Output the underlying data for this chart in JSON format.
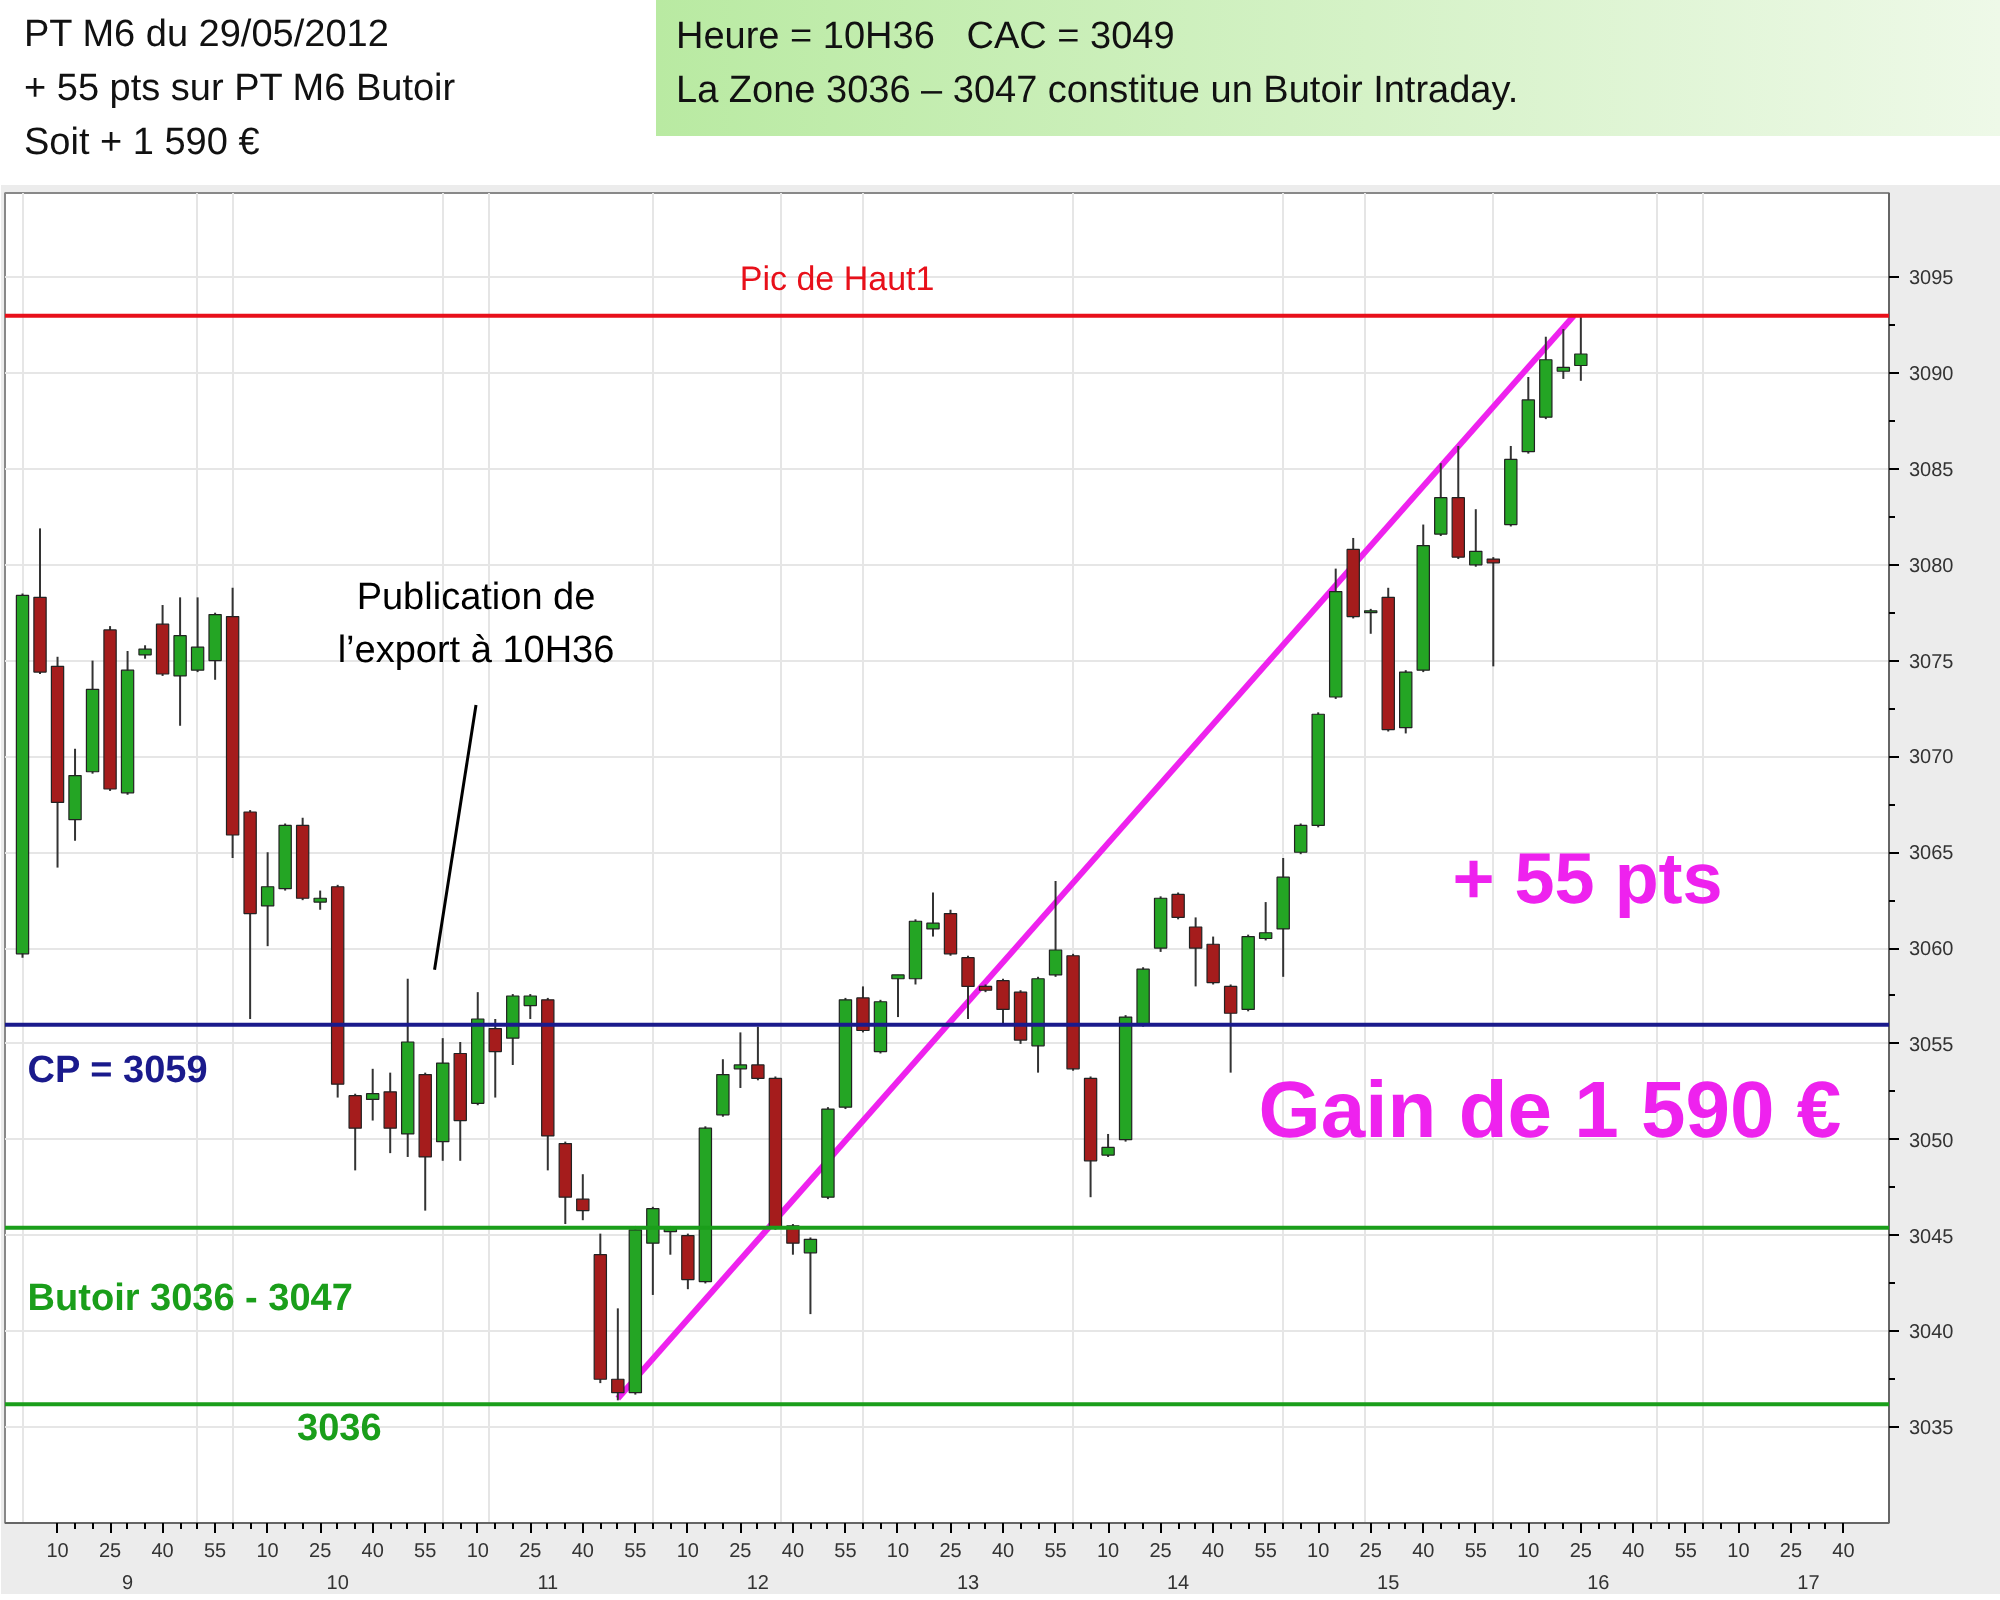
{
  "chart_data": {
    "type": "candlestick",
    "title": "PT M6 du 29/05/2012",
    "subtitle": "+ 55 pts sur PT M6 Butoir\nSoit + 1 590 €",
    "x": [
      "2012-05-29T09:00",
      "2012-05-29T09:05",
      "2012-05-29T09:10",
      "2012-05-29T09:15",
      "2012-05-29T09:20",
      "2012-05-29T09:25",
      "2012-05-29T09:30",
      "2012-05-29T09:35",
      "2012-05-29T09:40",
      "2012-05-29T09:45",
      "2012-05-29T09:50",
      "2012-05-29T09:55",
      "2012-05-29T10:00",
      "2012-05-29T10:05",
      "2012-05-29T10:10",
      "2012-05-29T10:15",
      "2012-05-29T10:20",
      "2012-05-29T10:25",
      "2012-05-29T10:30",
      "2012-05-29T10:35",
      "2012-05-29T10:40",
      "2012-05-29T10:45",
      "2012-05-29T10:50",
      "2012-05-29T10:55",
      "2012-05-29T11:00",
      "2012-05-29T11:05",
      "2012-05-29T11:10",
      "2012-05-29T11:15",
      "2012-05-29T11:20",
      "2012-05-29T11:25",
      "2012-05-29T11:30",
      "2012-05-29T11:35",
      "2012-05-29T11:40",
      "2012-05-29T11:45",
      "2012-05-29T11:50",
      "2012-05-29T11:55",
      "2012-05-29T12:00",
      "2012-05-29T12:05",
      "2012-05-29T12:10",
      "2012-05-29T12:15",
      "2012-05-29T12:20",
      "2012-05-29T12:25",
      "2012-05-29T12:30",
      "2012-05-29T12:35",
      "2012-05-29T12:40",
      "2012-05-29T12:45",
      "2012-05-29T12:50",
      "2012-05-29T12:55",
      "2012-05-29T13:00",
      "2012-05-29T13:05",
      "2012-05-29T13:10",
      "2012-05-29T13:15",
      "2012-05-29T13:20",
      "2012-05-29T13:25",
      "2012-05-29T13:30",
      "2012-05-29T13:35",
      "2012-05-29T13:40",
      "2012-05-29T13:45",
      "2012-05-29T13:50",
      "2012-05-29T13:55",
      "2012-05-29T14:00",
      "2012-05-29T14:05",
      "2012-05-29T14:10",
      "2012-05-29T14:15",
      "2012-05-29T14:20",
      "2012-05-29T14:25",
      "2012-05-29T14:30",
      "2012-05-29T14:35",
      "2012-05-29T14:40",
      "2012-05-29T14:45",
      "2012-05-29T14:50",
      "2012-05-29T14:55",
      "2012-05-29T15:00",
      "2012-05-29T15:05",
      "2012-05-29T15:10",
      "2012-05-29T15:15",
      "2012-05-29T15:20",
      "2012-05-29T15:25",
      "2012-05-29T15:30",
      "2012-05-29T15:35",
      "2012-05-29T15:40",
      "2012-05-29T15:45",
      "2012-05-29T15:50",
      "2012-05-29T15:55",
      "2012-05-29T16:00",
      "2012-05-29T16:05",
      "2012-05-29T16:10",
      "2012-05-29T16:15",
      "2012-05-29T16:20",
      "2012-05-29T16:25"
    ],
    "ohlc": [
      [
        3059.7,
        3078.5,
        3059.5,
        3078.4
      ],
      [
        3078.3,
        3081.9,
        3074.3,
        3074.4
      ],
      [
        3074.7,
        3075.2,
        3064.2,
        3067.6
      ],
      [
        3066.7,
        3070.4,
        3065.6,
        3069.0
      ],
      [
        3069.2,
        3075.0,
        3069.1,
        3073.5
      ],
      [
        3076.6,
        3076.8,
        3068.2,
        3068.3
      ],
      [
        3068.1,
        3075.5,
        3068.0,
        3074.5
      ],
      [
        3075.3,
        3075.8,
        3075.1,
        3075.6
      ],
      [
        3076.9,
        3077.9,
        3074.2,
        3074.3
      ],
      [
        3074.2,
        3078.3,
        3071.6,
        3076.3
      ],
      [
        3074.5,
        3078.3,
        3074.4,
        3075.7
      ],
      [
        3075.0,
        3077.5,
        3074.0,
        3077.4
      ],
      [
        3077.3,
        3078.8,
        3064.7,
        3065.9
      ],
      [
        3067.1,
        3067.2,
        3056.3,
        3061.8
      ],
      [
        3062.2,
        3065.0,
        3060.1,
        3063.2
      ],
      [
        3063.1,
        3066.5,
        3063.0,
        3066.4
      ],
      [
        3066.4,
        3066.8,
        3062.5,
        3062.6
      ],
      [
        3062.4,
        3063.0,
        3062.0,
        3062.6
      ],
      [
        3063.2,
        3063.3,
        3052.2,
        3052.9
      ],
      [
        3052.3,
        3052.4,
        3048.4,
        3050.6
      ],
      [
        3052.1,
        3053.7,
        3051.0,
        3052.4
      ],
      [
        3052.5,
        3053.5,
        3049.3,
        3050.6
      ],
      [
        3050.3,
        3058.4,
        3049.1,
        3055.1
      ],
      [
        3053.4,
        3053.5,
        3046.3,
        3049.1
      ],
      [
        3049.9,
        3055.3,
        3048.9,
        3054.0
      ],
      [
        3054.5,
        3055.1,
        3048.9,
        3051.0
      ],
      [
        3051.9,
        3057.7,
        3051.8,
        3056.3
      ],
      [
        3055.8,
        3056.3,
        3052.2,
        3054.6
      ],
      [
        3055.3,
        3057.6,
        3053.9,
        3057.5
      ],
      [
        3057.0,
        3057.6,
        3056.3,
        3057.5
      ],
      [
        3057.3,
        3057.4,
        3048.4,
        3050.2
      ],
      [
        3049.8,
        3049.9,
        3045.6,
        3047.0
      ],
      [
        3046.9,
        3048.2,
        3045.8,
        3046.3
      ],
      [
        3044.0,
        3045.1,
        3037.3,
        3037.5
      ],
      [
        3037.5,
        3041.2,
        3036.4,
        3036.8
      ],
      [
        3036.8,
        3045.5,
        3036.7,
        3045.3
      ],
      [
        3044.6,
        3046.5,
        3041.9,
        3046.4
      ],
      [
        3045.2,
        3045.5,
        3044.0,
        3045.4
      ],
      [
        3045.0,
        3045.1,
        3042.2,
        3042.7
      ],
      [
        3042.6,
        3050.7,
        3042.5,
        3050.6
      ],
      [
        3051.3,
        3054.2,
        3051.2,
        3053.4
      ],
      [
        3053.7,
        3055.6,
        3052.7,
        3053.9
      ],
      [
        3053.9,
        3055.9,
        3053.1,
        3053.2
      ],
      [
        3053.2,
        3053.3,
        3045.3,
        3045.4
      ],
      [
        3045.5,
        3045.6,
        3044.0,
        3044.6
      ],
      [
        3044.1,
        3044.9,
        3040.9,
        3044.8
      ],
      [
        3047.0,
        3051.7,
        3046.9,
        3051.6
      ],
      [
        3051.7,
        3057.4,
        3051.6,
        3057.3
      ],
      [
        3057.4,
        3058.0,
        3055.6,
        3055.7
      ],
      [
        3054.6,
        3057.3,
        3054.5,
        3057.2
      ],
      [
        3058.4,
        3058.6,
        3056.4,
        3058.6
      ],
      [
        3058.4,
        3061.5,
        3058.1,
        3061.4
      ],
      [
        3061.0,
        3062.9,
        3060.6,
        3061.3
      ],
      [
        3061.8,
        3062.0,
        3059.6,
        3059.7
      ],
      [
        3059.5,
        3059.6,
        3056.3,
        3058.0
      ],
      [
        3058.0,
        3058.1,
        3057.7,
        3057.8
      ],
      [
        3058.3,
        3058.4,
        3056.0,
        3056.8
      ],
      [
        3057.7,
        3057.8,
        3055.0,
        3055.2
      ],
      [
        3054.9,
        3058.5,
        3053.5,
        3058.4
      ],
      [
        3058.6,
        3063.5,
        3058.5,
        3059.9
      ],
      [
        3059.6,
        3059.7,
        3053.6,
        3053.7
      ],
      [
        3053.2,
        3053.3,
        3047.0,
        3048.9
      ],
      [
        3049.2,
        3050.3,
        3049.1,
        3049.6
      ],
      [
        3050.0,
        3056.5,
        3049.9,
        3056.4
      ],
      [
        3056.0,
        3059.0,
        3055.9,
        3058.9
      ],
      [
        3060.0,
        3062.7,
        3059.8,
        3062.6
      ],
      [
        3062.8,
        3062.9,
        3061.5,
        3061.6
      ],
      [
        3061.1,
        3061.6,
        3058.0,
        3060.0
      ],
      [
        3060.2,
        3060.6,
        3058.1,
        3058.2
      ],
      [
        3058.0,
        3058.1,
        3053.5,
        3056.6
      ],
      [
        3056.8,
        3060.7,
        3056.7,
        3060.6
      ],
      [
        3060.5,
        3062.4,
        3060.4,
        3060.8
      ],
      [
        3061.0,
        3064.7,
        3058.5,
        3063.7
      ],
      [
        3065.0,
        3066.5,
        3064.9,
        3066.4
      ],
      [
        3066.4,
        3072.3,
        3066.3,
        3072.2
      ],
      [
        3073.1,
        3079.8,
        3073.0,
        3078.6
      ],
      [
        3080.8,
        3081.4,
        3077.2,
        3077.3
      ],
      [
        3077.5,
        3077.7,
        3076.4,
        3077.6
      ],
      [
        3078.3,
        3078.8,
        3071.3,
        3071.4
      ],
      [
        3071.5,
        3074.5,
        3071.2,
        3074.4
      ],
      [
        3074.5,
        3082.1,
        3074.4,
        3081.0
      ],
      [
        3081.6,
        3085.3,
        3081.5,
        3083.5
      ],
      [
        3083.5,
        3086.2,
        3080.3,
        3080.4
      ],
      [
        3080.0,
        3082.9,
        3079.9,
        3080.7
      ],
      [
        3080.3,
        3080.4,
        3074.7,
        3080.1
      ],
      [
        3082.1,
        3086.2,
        3082.0,
        3085.5
      ],
      [
        3085.9,
        3089.8,
        3085.8,
        3088.6
      ],
      [
        3087.7,
        3091.9,
        3087.6,
        3090.7
      ],
      [
        3090.1,
        3092.3,
        3089.7,
        3090.3
      ],
      [
        3090.4,
        3093.0,
        3089.6,
        3091.0
      ]
    ],
    "colors": [
      "#24a524",
      "#a51c1c",
      "#a51c1c",
      "#24a524",
      "#24a524",
      "#a51c1c",
      "#24a524",
      "#24a524",
      "#a51c1c",
      "#24a524",
      "#24a524",
      "#24a524",
      "#a51c1c",
      "#a51c1c",
      "#24a524",
      "#24a524",
      "#a51c1c",
      "#24a524",
      "#a51c1c",
      "#a51c1c",
      "#24a524",
      "#a51c1c",
      "#24a524",
      "#a51c1c",
      "#24a524",
      "#a51c1c",
      "#24a524",
      "#a51c1c",
      "#24a524",
      "#24a524",
      "#a51c1c",
      "#a51c1c",
      "#a51c1c",
      "#a51c1c",
      "#a51c1c",
      "#24a524",
      "#24a524",
      "#24a524",
      "#a51c1c",
      "#24a524",
      "#24a524",
      "#24a524",
      "#a51c1c",
      "#a51c1c",
      "#a51c1c",
      "#24a524",
      "#24a524",
      "#24a524",
      "#a51c1c",
      "#24a524",
      "#24a524",
      "#24a524",
      "#24a524",
      "#a51c1c",
      "#a51c1c",
      "#a51c1c",
      "#a51c1c",
      "#a51c1c",
      "#24a524",
      "#24a524",
      "#a51c1c",
      "#a51c1c",
      "#24a524",
      "#24a524",
      "#24a524",
      "#24a524",
      "#a51c1c",
      "#a51c1c",
      "#a51c1c",
      "#a51c1c",
      "#24a524",
      "#24a524",
      "#24a524",
      "#24a524",
      "#24a524",
      "#24a524",
      "#a51c1c",
      "#24a524",
      "#a51c1c",
      "#24a524",
      "#24a524",
      "#24a524",
      "#a51c1c",
      "#24a524",
      "#a51c1c",
      "#24a524",
      "#24a524",
      "#24a524",
      "#24a524",
      "#24a524"
    ],
    "series": [
      {
        "type": "line",
        "color": "#ee22ee",
        "x": [
          "2012-05-29T11:50",
          "2012-05-29T16:23"
        ],
        "values": [
          3036.5,
          3093.0
        ]
      }
    ],
    "xlim": [
      "2012-05-29T08:55",
      "2012-05-29T17:53"
    ],
    "ylim": [
      3030,
      3099.4
    ],
    "xticks": [
      {
        "value": "2012-05-29T09:10",
        "label": "10"
      },
      {
        "value": "2012-05-29T09:25",
        "label": "25"
      },
      {
        "value": "2012-05-29T09:40",
        "label": "40"
      },
      {
        "value": "2012-05-29T09:55",
        "label": "55"
      },
      {
        "value": "2012-05-29T10:10",
        "label": "10"
      },
      {
        "value": "2012-05-29T10:25",
        "label": "25"
      },
      {
        "value": "2012-05-29T10:40",
        "label": "40"
      },
      {
        "value": "2012-05-29T10:55",
        "label": "55"
      },
      {
        "value": "2012-05-29T11:10",
        "label": "10"
      },
      {
        "value": "2012-05-29T11:25",
        "label": "25"
      },
      {
        "value": "2012-05-29T11:40",
        "label": "40"
      },
      {
        "value": "2012-05-29T11:55",
        "label": "55"
      },
      {
        "value": "2012-05-29T12:10",
        "label": "10"
      },
      {
        "value": "2012-05-29T12:25",
        "label": "25"
      },
      {
        "value": "2012-05-29T12:40",
        "label": "40"
      },
      {
        "value": "2012-05-29T12:55",
        "label": "55"
      },
      {
        "value": "2012-05-29T13:10",
        "label": "10"
      },
      {
        "value": "2012-05-29T13:25",
        "label": "25"
      },
      {
        "value": "2012-05-29T13:40",
        "label": "40"
      },
      {
        "value": "2012-05-29T13:55",
        "label": "55"
      },
      {
        "value": "2012-05-29T14:10",
        "label": "10"
      },
      {
        "value": "2012-05-29T14:25",
        "label": "25"
      },
      {
        "value": "2012-05-29T14:40",
        "label": "40"
      },
      {
        "value": "2012-05-29T14:55",
        "label": "55"
      },
      {
        "value": "2012-05-29T15:10",
        "label": "10"
      },
      {
        "value": "2012-05-29T15:25",
        "label": "25"
      },
      {
        "value": "2012-05-29T15:40",
        "label": "40"
      },
      {
        "value": "2012-05-29T15:55",
        "label": "55"
      },
      {
        "value": "2012-05-29T16:10",
        "label": "10"
      },
      {
        "value": "2012-05-29T16:25",
        "label": "25"
      },
      {
        "value": "2012-05-29T16:40",
        "label": "40"
      },
      {
        "value": "2012-05-29T16:55",
        "label": "55"
      },
      {
        "value": "2012-05-29T17:10",
        "label": "10"
      },
      {
        "value": "2012-05-29T17:25",
        "label": "25"
      },
      {
        "value": "2012-05-29T17:40",
        "label": "40"
      }
    ],
    "x2lim": [
      "2012-05-29T08:55",
      "2012-05-29T17:53"
    ],
    "x2ticks": [
      {
        "value": "2012-05-29T09:30",
        "label": "9"
      },
      {
        "value": "2012-05-29T10:30",
        "label": "10"
      },
      {
        "value": "2012-05-29T11:30",
        "label": "11"
      },
      {
        "value": "2012-05-29T12:30",
        "label": "12"
      },
      {
        "value": "2012-05-29T13:30",
        "label": "13"
      },
      {
        "value": "2012-05-29T14:30",
        "label": "14"
      },
      {
        "value": "2012-05-29T15:30",
        "label": "15"
      },
      {
        "value": "2012-05-29T16:30",
        "label": "16"
      },
      {
        "value": "2012-05-29T17:30",
        "label": "17"
      }
    ],
    "yticks": [
      3035,
      3040,
      3045,
      3050,
      3055,
      3060,
      3065,
      3070,
      3075,
      3080,
      3085,
      3090,
      3095
    ],
    "grid": true,
    "ref_lines": [
      {
        "axis": "y",
        "value": 3093.0,
        "label": "Pic de Haut1",
        "color": "#e8101a"
      },
      {
        "axis": "y",
        "value": 3056.0,
        "color": "#1a1a8c"
      },
      {
        "axis": "y",
        "value": 3045.4,
        "label": "Butoir 3036 - 3047",
        "color": "#1a9e1a"
      },
      {
        "axis": "y",
        "value": 3036.2,
        "label": "3036",
        "color": "#1a9e1a"
      }
    ],
    "annotations": [
      "Heure = 10H36   CAC = 3049",
      "La Zone 3036 – 3047 constitue un Butoir Intraday.",
      "Publication de\nl’export à 10H36",
      "CP = 3059",
      "+ 55 pts",
      "Gain de 1 590 €"
    ]
  }
}
